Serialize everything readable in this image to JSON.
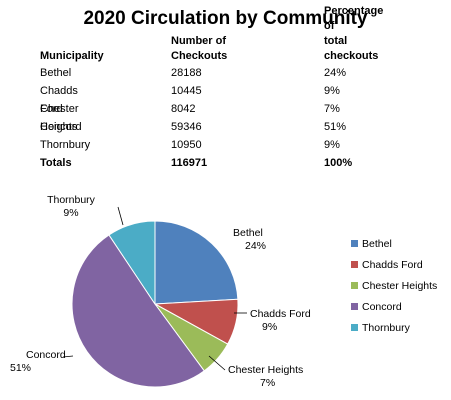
{
  "title": "2020 Circulation by Community",
  "table": {
    "headers": {
      "municipality": "Municipality",
      "checkouts_line1": "Number of",
      "checkouts_line2": "Checkouts",
      "percent_line1": "Percentage of",
      "percent_line2": "total checkouts"
    },
    "rows": [
      {
        "name": "Bethel",
        "checkouts": "28188",
        "percent": "24%"
      },
      {
        "name": "Chadds Ford",
        "checkouts": "10445",
        "percent": "9%"
      },
      {
        "name": "Chester Heights",
        "checkouts": "8042",
        "percent": "7%"
      },
      {
        "name": "Concord",
        "checkouts": "59346",
        "percent": "51%"
      },
      {
        "name": "Thornbury",
        "checkouts": "10950",
        "percent": "9%"
      }
    ],
    "totals": {
      "label": "Totals",
      "checkouts": "116971",
      "percent": "100%"
    }
  },
  "chart_data": {
    "type": "pie",
    "title": "",
    "categories": [
      "Bethel",
      "Chadds Ford",
      "Chester Heights",
      "Concord",
      "Thornbury"
    ],
    "values": [
      28188,
      10445,
      8042,
      59346,
      10950
    ],
    "percent_labels": [
      "24%",
      "9%",
      "7%",
      "51%",
      "9%"
    ],
    "colors": [
      "#4f81bd",
      "#c0504d",
      "#9bbb59",
      "#8064a2",
      "#4bacc6"
    ],
    "legend": "right"
  }
}
